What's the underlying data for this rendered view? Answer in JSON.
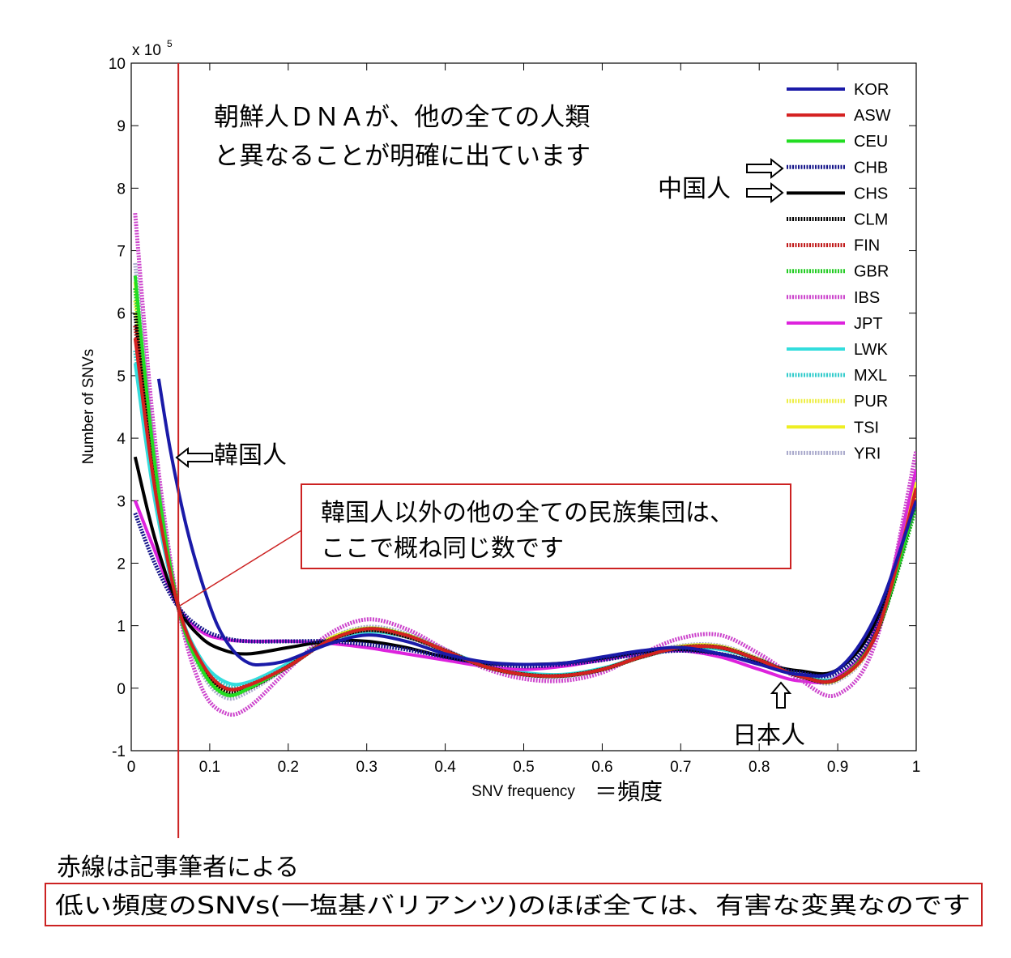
{
  "chart_data": {
    "type": "line",
    "xlabel": "SNV frequency",
    "ylabel": "Number of SNVs",
    "y_multiplier_label": "x 10",
    "y_multiplier_exp": "5",
    "xlim": [
      0,
      1
    ],
    "ylim": [
      -1,
      10
    ],
    "x_ticks": [
      "0",
      "0.1",
      "0.2",
      "0.3",
      "0.4",
      "0.5",
      "0.6",
      "0.7",
      "0.8",
      "0.9",
      "1"
    ],
    "y_ticks": [
      "-1",
      "0",
      "1",
      "2",
      "3",
      "4",
      "5",
      "6",
      "7",
      "8",
      "9",
      "10"
    ],
    "grid": false,
    "legend_position": "top-right",
    "series": [
      {
        "name": "KOR",
        "color": "#1a1aa8",
        "style": "solid",
        "x": [
          0.035,
          0.05,
          0.07,
          0.09,
          0.11,
          0.13,
          0.15,
          0.17,
          0.2,
          0.25,
          0.3,
          0.35,
          0.4,
          0.45,
          0.5,
          0.55,
          0.6,
          0.65,
          0.7,
          0.75,
          0.8,
          0.85,
          0.9,
          0.95,
          1.0
        ],
        "y": [
          4.95,
          3.8,
          2.6,
          1.7,
          1.0,
          0.6,
          0.4,
          0.38,
          0.45,
          0.7,
          0.85,
          0.75,
          0.55,
          0.42,
          0.38,
          0.4,
          0.5,
          0.6,
          0.65,
          0.55,
          0.38,
          0.22,
          0.3,
          1.2,
          3.0
        ]
      },
      {
        "name": "ASW",
        "color": "#d42020",
        "style": "solid",
        "x": [
          0.005,
          0.03,
          0.06,
          0.09,
          0.12,
          0.15,
          0.2,
          0.25,
          0.3,
          0.35,
          0.4,
          0.45,
          0.5,
          0.55,
          0.6,
          0.65,
          0.7,
          0.75,
          0.8,
          0.85,
          0.9,
          0.95,
          1.0
        ],
        "y": [
          5.6,
          3.2,
          1.3,
          0.4,
          0.0,
          0.05,
          0.35,
          0.75,
          0.95,
          0.85,
          0.6,
          0.35,
          0.22,
          0.2,
          0.3,
          0.5,
          0.65,
          0.65,
          0.45,
          0.2,
          0.15,
          0.9,
          3.2
        ]
      },
      {
        "name": "CEU",
        "color": "#22dd22",
        "style": "solid",
        "x": [
          0.005,
          0.03,
          0.06,
          0.09,
          0.12,
          0.15,
          0.2,
          0.25,
          0.3,
          0.35,
          0.4,
          0.45,
          0.5,
          0.55,
          0.6,
          0.65,
          0.7,
          0.75,
          0.8,
          0.85,
          0.9,
          0.95,
          1.0
        ],
        "y": [
          6.6,
          3.6,
          1.3,
          0.3,
          -0.1,
          0.0,
          0.35,
          0.75,
          0.95,
          0.85,
          0.6,
          0.35,
          0.22,
          0.2,
          0.3,
          0.5,
          0.65,
          0.65,
          0.45,
          0.2,
          0.15,
          0.9,
          3.0
        ]
      },
      {
        "name": "CHB",
        "color": "#14148a",
        "style": "dotted",
        "x": [
          0.005,
          0.03,
          0.06,
          0.09,
          0.12,
          0.15,
          0.2,
          0.25,
          0.3,
          0.35,
          0.4,
          0.45,
          0.5,
          0.55,
          0.6,
          0.65,
          0.7,
          0.75,
          0.8,
          0.85,
          0.9,
          0.95,
          1.0
        ],
        "y": [
          2.8,
          2.0,
          1.3,
          0.95,
          0.8,
          0.75,
          0.75,
          0.75,
          0.7,
          0.62,
          0.5,
          0.4,
          0.35,
          0.38,
          0.45,
          0.55,
          0.6,
          0.55,
          0.4,
          0.25,
          0.25,
          1.0,
          3.0
        ]
      },
      {
        "name": "CHS",
        "color": "#000000",
        "style": "solid",
        "x": [
          0.005,
          0.03,
          0.06,
          0.09,
          0.12,
          0.15,
          0.2,
          0.25,
          0.3,
          0.35,
          0.4,
          0.45,
          0.5,
          0.55,
          0.6,
          0.65,
          0.7,
          0.75,
          0.8,
          0.85,
          0.9,
          0.95,
          1.0
        ],
        "y": [
          3.7,
          2.4,
          1.3,
          0.8,
          0.6,
          0.55,
          0.65,
          0.75,
          0.75,
          0.65,
          0.5,
          0.4,
          0.38,
          0.4,
          0.48,
          0.58,
          0.62,
          0.55,
          0.4,
          0.28,
          0.3,
          1.1,
          3.0
        ]
      },
      {
        "name": "CLM",
        "color": "#000000",
        "style": "dotted",
        "x": [
          0.005,
          0.03,
          0.06,
          0.09,
          0.12,
          0.15,
          0.2,
          0.25,
          0.3,
          0.35,
          0.4,
          0.45,
          0.5,
          0.55,
          0.6,
          0.65,
          0.7,
          0.75,
          0.8,
          0.85,
          0.9,
          0.95,
          1.0
        ],
        "y": [
          6.0,
          3.4,
          1.3,
          0.35,
          -0.05,
          0.0,
          0.35,
          0.75,
          0.93,
          0.83,
          0.6,
          0.35,
          0.22,
          0.2,
          0.3,
          0.5,
          0.65,
          0.65,
          0.45,
          0.2,
          0.15,
          0.9,
          3.0
        ]
      },
      {
        "name": "FIN",
        "color": "#c01818",
        "style": "dotted",
        "x": [
          0.005,
          0.03,
          0.06,
          0.09,
          0.12,
          0.15,
          0.2,
          0.25,
          0.3,
          0.35,
          0.4,
          0.45,
          0.5,
          0.55,
          0.6,
          0.65,
          0.7,
          0.75,
          0.8,
          0.85,
          0.9,
          0.95,
          1.0
        ],
        "y": [
          5.8,
          3.3,
          1.3,
          0.35,
          0.0,
          0.05,
          0.35,
          0.75,
          0.93,
          0.83,
          0.6,
          0.35,
          0.22,
          0.2,
          0.3,
          0.5,
          0.65,
          0.65,
          0.45,
          0.2,
          0.15,
          0.9,
          3.1
        ]
      },
      {
        "name": "GBR",
        "color": "#22cc22",
        "style": "dotted",
        "x": [
          0.005,
          0.03,
          0.06,
          0.09,
          0.12,
          0.15,
          0.2,
          0.25,
          0.3,
          0.35,
          0.4,
          0.45,
          0.5,
          0.55,
          0.6,
          0.65,
          0.7,
          0.75,
          0.8,
          0.85,
          0.9,
          0.95,
          1.0
        ],
        "y": [
          6.4,
          3.5,
          1.3,
          0.3,
          -0.1,
          0.0,
          0.35,
          0.75,
          0.95,
          0.85,
          0.6,
          0.35,
          0.22,
          0.2,
          0.3,
          0.5,
          0.65,
          0.65,
          0.45,
          0.2,
          0.15,
          0.9,
          2.9
        ]
      },
      {
        "name": "IBS",
        "color": "#cc44cc",
        "style": "dotted",
        "x": [
          0.005,
          0.03,
          0.06,
          0.09,
          0.12,
          0.15,
          0.2,
          0.25,
          0.3,
          0.35,
          0.4,
          0.45,
          0.5,
          0.55,
          0.6,
          0.65,
          0.7,
          0.75,
          0.8,
          0.85,
          0.9,
          0.95,
          1.0
        ],
        "y": [
          7.6,
          4.0,
          1.3,
          0.0,
          -0.4,
          -0.3,
          0.3,
          0.85,
          1.1,
          0.95,
          0.62,
          0.32,
          0.15,
          0.12,
          0.25,
          0.55,
          0.8,
          0.85,
          0.55,
          0.15,
          -0.1,
          0.8,
          3.8
        ]
      },
      {
        "name": "JPT",
        "color": "#dd22dd",
        "style": "solid",
        "x": [
          0.005,
          0.03,
          0.06,
          0.09,
          0.12,
          0.15,
          0.2,
          0.25,
          0.3,
          0.35,
          0.4,
          0.45,
          0.5,
          0.55,
          0.6,
          0.65,
          0.7,
          0.75,
          0.8,
          0.85,
          0.9,
          0.95,
          1.0
        ],
        "y": [
          3.0,
          2.2,
          1.3,
          0.9,
          0.78,
          0.75,
          0.75,
          0.72,
          0.65,
          0.55,
          0.45,
          0.35,
          0.3,
          0.35,
          0.45,
          0.55,
          0.6,
          0.5,
          0.3,
          0.12,
          0.18,
          1.0,
          3.5
        ]
      },
      {
        "name": "LWK",
        "color": "#33dddd",
        "style": "solid",
        "x": [
          0.005,
          0.03,
          0.06,
          0.09,
          0.12,
          0.15,
          0.2,
          0.25,
          0.3,
          0.35,
          0.4,
          0.45,
          0.5,
          0.55,
          0.6,
          0.65,
          0.7,
          0.75,
          0.8,
          0.85,
          0.9,
          0.95,
          1.0
        ],
        "y": [
          5.2,
          3.0,
          1.3,
          0.45,
          0.1,
          0.1,
          0.4,
          0.75,
          0.9,
          0.82,
          0.6,
          0.38,
          0.25,
          0.22,
          0.32,
          0.5,
          0.63,
          0.62,
          0.45,
          0.22,
          0.18,
          0.95,
          3.0
        ]
      },
      {
        "name": "MXL",
        "color": "#33cccc",
        "style": "dotted",
        "x": [
          0.005,
          0.03,
          0.06,
          0.09,
          0.12,
          0.15,
          0.2,
          0.25,
          0.3,
          0.35,
          0.4,
          0.45,
          0.5,
          0.55,
          0.6,
          0.65,
          0.7,
          0.75,
          0.8,
          0.85,
          0.9,
          0.95,
          1.0
        ],
        "y": [
          5.4,
          3.1,
          1.3,
          0.4,
          0.05,
          0.08,
          0.38,
          0.75,
          0.92,
          0.83,
          0.6,
          0.36,
          0.23,
          0.21,
          0.31,
          0.5,
          0.64,
          0.64,
          0.45,
          0.21,
          0.16,
          0.92,
          3.0
        ]
      },
      {
        "name": "PUR",
        "color": "#eeee44",
        "style": "dotted",
        "x": [
          0.005,
          0.03,
          0.06,
          0.09,
          0.12,
          0.15,
          0.2,
          0.25,
          0.3,
          0.35,
          0.4,
          0.45,
          0.5,
          0.55,
          0.6,
          0.65,
          0.7,
          0.75,
          0.8,
          0.85,
          0.9,
          0.95,
          1.0
        ],
        "y": [
          6.2,
          3.5,
          1.3,
          0.32,
          -0.08,
          0.0,
          0.36,
          0.76,
          0.94,
          0.84,
          0.6,
          0.35,
          0.22,
          0.2,
          0.3,
          0.5,
          0.66,
          0.66,
          0.46,
          0.2,
          0.14,
          0.9,
          3.1
        ]
      },
      {
        "name": "TSI",
        "color": "#eeee22",
        "style": "solid",
        "x": [
          0.005,
          0.03,
          0.06,
          0.09,
          0.12,
          0.15,
          0.2,
          0.25,
          0.3,
          0.35,
          0.4,
          0.45,
          0.5,
          0.55,
          0.6,
          0.65,
          0.7,
          0.75,
          0.8,
          0.85,
          0.9,
          0.95,
          1.0
        ],
        "y": [
          6.5,
          3.6,
          1.3,
          0.3,
          -0.1,
          0.0,
          0.36,
          0.78,
          0.96,
          0.86,
          0.6,
          0.35,
          0.22,
          0.2,
          0.3,
          0.5,
          0.67,
          0.67,
          0.46,
          0.2,
          0.14,
          0.9,
          3.3
        ]
      },
      {
        "name": "YRI",
        "color": "#aaaacc",
        "style": "dotted",
        "x": [
          0.005,
          0.03,
          0.06,
          0.09,
          0.12,
          0.15,
          0.2,
          0.25,
          0.3,
          0.35,
          0.4,
          0.45,
          0.5,
          0.55,
          0.6,
          0.65,
          0.7,
          0.75,
          0.8,
          0.85,
          0.9,
          0.95,
          1.0
        ],
        "y": [
          6.8,
          3.7,
          1.3,
          0.25,
          -0.15,
          -0.05,
          0.35,
          0.78,
          0.98,
          0.88,
          0.62,
          0.35,
          0.2,
          0.18,
          0.3,
          0.52,
          0.68,
          0.68,
          0.47,
          0.2,
          0.12,
          0.9,
          3.4
        ]
      }
    ],
    "reference_line": {
      "x": 0.06,
      "color": "#cc2222"
    },
    "annotations": {
      "headline_1": "朝鮮人ＤＮＡが、他の全ての人類",
      "headline_2": "と異なることが明確に出ています",
      "chinese": "中国人",
      "korean": "韓国人",
      "japanese": "日本人",
      "box_line_1": "韓国人以外の他の全ての民族集団は、",
      "box_line_2": "ここで概ね同じ数です",
      "xlabel_suffix": "＝頻度",
      "red_line_note": "赤線は記事筆者による",
      "bottom_box": "低い頻度のSNVs(一塩基バリアンツ)のほぼ全ては、有害な変異なのです"
    },
    "accent_color": "#cc2222"
  }
}
